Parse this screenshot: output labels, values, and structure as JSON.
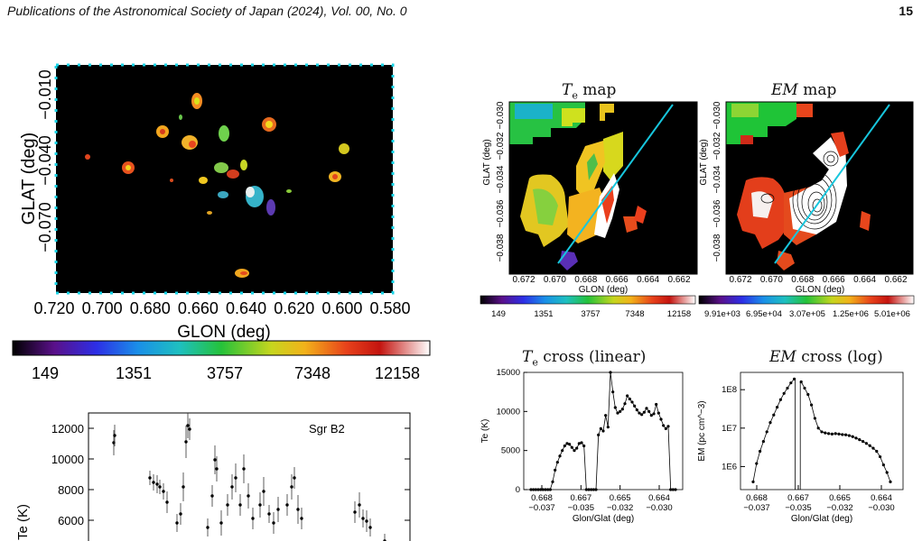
{
  "header": {
    "journal": "Publications of the Astronomical Society of Japan (2024), Vol. 00, No. 0",
    "page_number": "15"
  },
  "big_map": {
    "ylabel": "GLAT (deg)",
    "xlabel": "GLON (deg)",
    "yticks": [
      "−0.010",
      "−0.040",
      "−0.070"
    ],
    "xticks": [
      "0.720",
      "0.700",
      "0.680",
      "0.660",
      "0.640",
      "0.620",
      "0.600",
      "0.580"
    ],
    "colorbar_ticks": [
      "149",
      "1351",
      "3757",
      "7348",
      "12158"
    ]
  },
  "te_map": {
    "title": "T",
    "title_sub": "e",
    "title_rest": " map",
    "ylabel": "GLAT (deg)",
    "yticks": [
      "−0.038",
      "−0.036",
      "−0.034",
      "−0.032",
      "−0.030"
    ],
    "xlabel": "GLON (deg)",
    "xticks": [
      "0.672",
      "0.670",
      "0.668",
      "0.666",
      "0.664",
      "0.662"
    ],
    "colorbar_ticks": [
      "149",
      "1351",
      "3757",
      "7348",
      "12158"
    ]
  },
  "em_map": {
    "title": "EM",
    "title_rest": " map",
    "ylabel": "GLAT (deg)",
    "yticks": [
      "−0.038",
      "−0.036",
      "−0.034",
      "−0.032",
      "−0.030"
    ],
    "xlabel": "GLON (deg)",
    "xticks": [
      "0.672",
      "0.670",
      "0.668",
      "0.666",
      "0.664",
      "0.662"
    ],
    "colorbar_ticks": [
      "9.91e+03",
      "6.95e+04",
      "3.07e+05",
      "1.25e+06",
      "5.01e+06"
    ]
  },
  "te_cross": {
    "title": "T",
    "title_sub": "e",
    "title_rest": " cross (linear)",
    "ylabel": "Te (K)",
    "yticks": [
      "0",
      "5000",
      "10000",
      "15000"
    ],
    "xticks_glon": [
      "0.668",
      "0.667",
      "0.665",
      "0.664"
    ],
    "xticks_glat": [
      "−0.037",
      "−0.035",
      "−0.032",
      "−0.030"
    ],
    "xlabel": "Glon/Glat (deg)"
  },
  "em_cross": {
    "title": "EM",
    "title_rest": " cross (log)",
    "ylabel": "EM (pc cm^−3)",
    "yticks": [
      "1E6",
      "1E7",
      "1E8"
    ],
    "xticks_glon": [
      "0.668",
      "0.667",
      "0.665",
      "0.664"
    ],
    "xticks_glat": [
      "−0.037",
      "−0.035",
      "−0.032",
      "−0.030"
    ],
    "xlabel": "Glon/Glat (deg)"
  },
  "sgr_plot": {
    "label": "Sgr B2",
    "ylabel": "Te (K)",
    "yticks": [
      "6000",
      "8000",
      "10000",
      "12000"
    ]
  },
  "chart_data": [
    {
      "type": "line",
      "ylabel": "Te (K)",
      "xlabel": "Glon/Glat (deg)",
      "ylim": [
        0,
        15000
      ],
      "x": [
        0,
        1,
        2,
        3,
        4,
        5,
        6,
        7,
        8,
        9,
        10,
        11,
        12,
        13,
        14,
        15,
        16,
        17,
        18,
        19,
        20,
        21,
        22,
        23,
        24,
        25,
        26,
        27,
        28,
        29,
        30,
        31,
        32,
        33,
        34,
        35,
        36,
        37,
        38,
        39,
        40,
        41,
        42,
        43,
        44,
        45,
        46,
        47,
        48,
        49,
        50,
        51,
        52,
        53,
        54,
        55,
        56,
        57,
        58,
        59,
        60
      ],
      "values": [
        0,
        0,
        0,
        0,
        0,
        0,
        0,
        0,
        0,
        1000,
        2500,
        3500,
        4300,
        5000,
        5600,
        5900,
        5800,
        5400,
        5000,
        5300,
        5900,
        6000,
        5600,
        0,
        0,
        0,
        0,
        0,
        7000,
        7800,
        7500,
        9500,
        8000,
        15000,
        12500,
        10500,
        9800,
        10000,
        10300,
        11000,
        12000,
        11600,
        11200,
        10700,
        10200,
        9800,
        9600,
        9900,
        10400,
        10000,
        9500,
        9700,
        10900,
        9800,
        9000,
        8200,
        7800,
        8100,
        0,
        0,
        0
      ]
    },
    {
      "type": "line",
      "ylabel": "EM (pc cm^−3)",
      "xlabel": "Glon/Glat (deg)",
      "yscale": "log",
      "x": [
        0,
        1,
        2,
        3,
        4,
        5,
        6,
        7,
        8,
        9,
        10,
        11,
        12,
        13,
        14,
        15,
        16,
        17,
        18,
        19,
        20,
        21,
        22,
        23,
        24,
        25,
        26,
        27,
        28,
        29,
        30,
        31,
        32,
        33,
        34,
        35,
        36,
        37,
        38,
        39,
        40
      ],
      "values": [
        400000,
        1200000,
        2500000,
        4500000,
        8000000,
        14000000,
        22000000,
        35000000,
        55000000,
        80000000,
        110000000,
        150000000,
        190000000,
        null,
        160000000,
        110000000,
        75000000,
        40000000,
        18000000,
        10000000,
        8000000,
        7500000,
        7200000,
        7000000,
        7200000,
        7000000,
        6800000,
        6700000,
        6400000,
        6000000,
        5500000,
        5000000,
        4500000,
        4000000,
        3500000,
        3000000,
        2500000,
        1800000,
        1100000,
        700000,
        400000
      ]
    }
  ]
}
